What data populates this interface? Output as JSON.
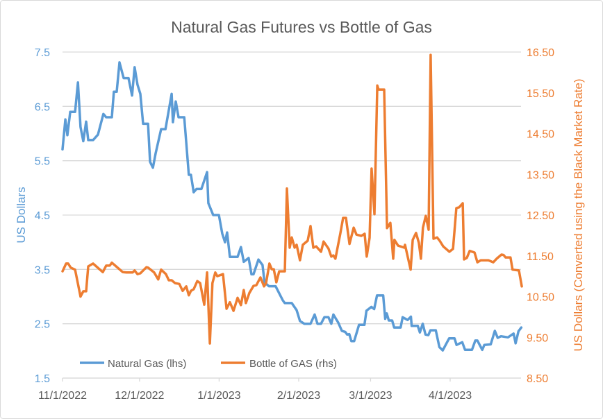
{
  "colors": {
    "natural_gas": "#5b9bd5",
    "bottle_gas": "#ed7d31",
    "grid": "#d9d9d9",
    "title": "#595959"
  },
  "chart_data": {
    "type": "line",
    "title": "Natural Gas Futures vs Bottle of Gas",
    "xlabel": "",
    "x_units": "days since 11/1/2022",
    "xlim": [
      0,
      178.6
    ],
    "x_ticks": [
      {
        "value": 0,
        "label": "11/1/2022"
      },
      {
        "value": 30,
        "label": "12/1/2022"
      },
      {
        "value": 61,
        "label": "1/1/2023"
      },
      {
        "value": 92,
        "label": "2/1/2023"
      },
      {
        "value": 120,
        "label": "3/1/2023"
      },
      {
        "value": 151,
        "label": "4/1/2023"
      }
    ],
    "y_left": {
      "label": "US Dollars",
      "lim": [
        1.5,
        7.5
      ],
      "ticks": [
        "1.5",
        "2.5",
        "3.5",
        "4.5",
        "5.5",
        "6.5",
        "7.5"
      ]
    },
    "y_right": {
      "label": "US Dollars (Converted using the Black Market Rate)",
      "lim": [
        8.5,
        16.5
      ],
      "ticks": [
        "8.50",
        "9.50",
        "10.50",
        "11.50",
        "12.50",
        "13.50",
        "14.50",
        "15.50",
        "16.50"
      ]
    },
    "grid": true,
    "legend_position": "bottom-left-inside",
    "series": [
      {
        "name": "Natural Gas (lhs)",
        "axis": "left",
        "points": [
          [
            0,
            5.71
          ],
          [
            1.1,
            6.26
          ],
          [
            1.9,
            5.97
          ],
          [
            3,
            6.4
          ],
          [
            4.9,
            6.4
          ],
          [
            6,
            6.94
          ],
          [
            7,
            6.12
          ],
          [
            8.1,
            5.86
          ],
          [
            9.2,
            6.22
          ],
          [
            10,
            5.88
          ],
          [
            11.9,
            5.88
          ],
          [
            13.8,
            5.98
          ],
          [
            15.9,
            6.36
          ],
          [
            17,
            6.3
          ],
          [
            19.2,
            6.3
          ],
          [
            20,
            6.77
          ],
          [
            21.1,
            6.77
          ],
          [
            22.2,
            7.31
          ],
          [
            23.8,
            7.02
          ],
          [
            25.7,
            7.02
          ],
          [
            27.1,
            6.7
          ],
          [
            28.1,
            7.22
          ],
          [
            29.2,
            6.9
          ],
          [
            30.3,
            6.73
          ],
          [
            31.4,
            6.18
          ],
          [
            33.3,
            6.18
          ],
          [
            34.1,
            5.48
          ],
          [
            35.2,
            5.37
          ],
          [
            36.3,
            5.64
          ],
          [
            38.4,
            6.08
          ],
          [
            40.1,
            6.08
          ],
          [
            42.5,
            6.73
          ],
          [
            43,
            6.21
          ],
          [
            44.1,
            6.59
          ],
          [
            45.2,
            6.3
          ],
          [
            47.4,
            6.3
          ],
          [
            49.2,
            5.24
          ],
          [
            50,
            5.24
          ],
          [
            51.1,
            4.92
          ],
          [
            52.2,
            4.98
          ],
          [
            54.1,
            4.98
          ],
          [
            56.3,
            5.29
          ],
          [
            56.8,
            4.72
          ],
          [
            58.7,
            4.5
          ],
          [
            60.9,
            4.5
          ],
          [
            62.2,
            4.16
          ],
          [
            63.3,
            4.0
          ],
          [
            64.1,
            4.18
          ],
          [
            65.2,
            3.73
          ],
          [
            68.2,
            3.73
          ],
          [
            69.5,
            3.91
          ],
          [
            70.6,
            3.64
          ],
          [
            72.5,
            3.71
          ],
          [
            73.6,
            3.41
          ],
          [
            74.4,
            3.41
          ],
          [
            76.3,
            3.68
          ],
          [
            77.9,
            3.58
          ],
          [
            78.7,
            3.26
          ],
          [
            80.4,
            3.19
          ],
          [
            83,
            3.19
          ],
          [
            85.8,
            2.93
          ],
          [
            86.6,
            2.88
          ],
          [
            89.3,
            2.88
          ],
          [
            91.2,
            2.75
          ],
          [
            92.5,
            2.55
          ],
          [
            94.2,
            2.5
          ],
          [
            96.6,
            2.5
          ],
          [
            98.2,
            2.67
          ],
          [
            99.3,
            2.5
          ],
          [
            100.7,
            2.5
          ],
          [
            102,
            2.62
          ],
          [
            103.6,
            2.62
          ],
          [
            104.7,
            2.5
          ],
          [
            105.5,
            2.67
          ],
          [
            107.4,
            2.52
          ],
          [
            108.8,
            2.37
          ],
          [
            110.1,
            2.35
          ],
          [
            110.9,
            2.3
          ],
          [
            111.7,
            2.31
          ],
          [
            112.5,
            2.18
          ],
          [
            113.6,
            2.18
          ],
          [
            115.5,
            2.48
          ],
          [
            117.6,
            2.48
          ],
          [
            118.4,
            2.74
          ],
          [
            120.3,
            2.81
          ],
          [
            121.4,
            2.77
          ],
          [
            122.5,
            3.02
          ],
          [
            124.9,
            3.02
          ],
          [
            125.7,
            2.59
          ],
          [
            126.3,
            2.69
          ],
          [
            127.1,
            2.56
          ],
          [
            128.4,
            2.56
          ],
          [
            129.2,
            2.43
          ],
          [
            131.7,
            2.43
          ],
          [
            132.5,
            2.62
          ],
          [
            134.4,
            2.57
          ],
          [
            135.7,
            2.63
          ],
          [
            136,
            2.46
          ],
          [
            138.4,
            2.46
          ],
          [
            139.2,
            2.34
          ],
          [
            140.3,
            2.5
          ],
          [
            141.4,
            2.3
          ],
          [
            142.5,
            2.29
          ],
          [
            143.3,
            2.38
          ],
          [
            145.4,
            2.38
          ],
          [
            146.8,
            2.07
          ],
          [
            148.1,
            2.01
          ],
          [
            150.6,
            2.23
          ],
          [
            152.7,
            2.23
          ],
          [
            153.5,
            2.11
          ],
          [
            155.7,
            2.16
          ],
          [
            156.8,
            2.02
          ],
          [
            159.5,
            2.02
          ],
          [
            160.8,
            2.19
          ],
          [
            161.6,
            2.19
          ],
          [
            163.5,
            2.02
          ],
          [
            164.3,
            2.11
          ],
          [
            166.8,
            2.12
          ],
          [
            168.4,
            2.37
          ],
          [
            169.5,
            2.24
          ],
          [
            170.8,
            2.27
          ],
          [
            173.5,
            2.25
          ],
          [
            175.7,
            2.32
          ],
          [
            176.5,
            2.14
          ],
          [
            177.6,
            2.36
          ],
          [
            178.7,
            2.43
          ]
        ]
      },
      {
        "name": "Bottle of GAS (rhs)",
        "axis": "right",
        "points": [
          [
            0,
            11.12
          ],
          [
            1.4,
            11.31
          ],
          [
            2.2,
            11.31
          ],
          [
            3.2,
            11.21
          ],
          [
            4.9,
            11.16
          ],
          [
            7,
            10.5
          ],
          [
            8.1,
            10.63
          ],
          [
            9.2,
            10.63
          ],
          [
            10,
            11.24
          ],
          [
            11.9,
            11.31
          ],
          [
            15.7,
            11.1
          ],
          [
            17,
            11.26
          ],
          [
            18.4,
            11.26
          ],
          [
            19.2,
            11.33
          ],
          [
            23.5,
            11.1
          ],
          [
            24.9,
            11.09
          ],
          [
            27.3,
            11.09
          ],
          [
            28.1,
            11.14
          ],
          [
            29.2,
            11.05
          ],
          [
            30.3,
            11.07
          ],
          [
            32.7,
            11.22
          ],
          [
            33.3,
            11.21
          ],
          [
            35.7,
            11.09
          ],
          [
            37.3,
            10.92
          ],
          [
            38.4,
            11.16
          ],
          [
            40.3,
            11.05
          ],
          [
            41.4,
            10.9
          ],
          [
            42.5,
            10.9
          ],
          [
            43.8,
            10.83
          ],
          [
            45.5,
            10.81
          ],
          [
            46.8,
            10.64
          ],
          [
            48.2,
            10.75
          ],
          [
            49.2,
            10.53
          ],
          [
            50,
            10.64
          ],
          [
            51.1,
            10.68
          ],
          [
            52.5,
            10.88
          ],
          [
            53.6,
            10.83
          ],
          [
            55.2,
            10.3
          ],
          [
            56.3,
            11.09
          ],
          [
            57.4,
            9.35
          ],
          [
            58.4,
            10.83
          ],
          [
            59.5,
            11.09
          ],
          [
            60.3,
            11.0
          ],
          [
            62.5,
            11.05
          ],
          [
            63.9,
            10.2
          ],
          [
            65.2,
            10.36
          ],
          [
            66.6,
            10.15
          ],
          [
            68.2,
            10.47
          ],
          [
            69.5,
            10.29
          ],
          [
            70.6,
            10.66
          ],
          [
            71.4,
            10.34
          ],
          [
            72.8,
            10.59
          ],
          [
            74.4,
            10.76
          ],
          [
            75.5,
            10.78
          ],
          [
            77.1,
            10.97
          ],
          [
            78.5,
            10.75
          ],
          [
            79.3,
            10.83
          ],
          [
            80.6,
            11.31
          ],
          [
            81.5,
            11.17
          ],
          [
            82.3,
            11.17
          ],
          [
            83.3,
            10.85
          ],
          [
            84.4,
            11.12
          ],
          [
            86.6,
            11.12
          ],
          [
            87.4,
            13.15
          ],
          [
            88.5,
            11.7
          ],
          [
            89.3,
            11.95
          ],
          [
            90.4,
            11.7
          ],
          [
            91.2,
            11.77
          ],
          [
            92.5,
            11.39
          ],
          [
            93.6,
            11.77
          ],
          [
            95.5,
            11.87
          ],
          [
            96.6,
            12.23
          ],
          [
            97.7,
            11.7
          ],
          [
            98.8,
            11.73
          ],
          [
            100.7,
            11.6
          ],
          [
            101.7,
            11.85
          ],
          [
            103.6,
            11.68
          ],
          [
            104.7,
            11.48
          ],
          [
            105.5,
            11.51
          ],
          [
            106.3,
            11.43
          ],
          [
            108.2,
            12.04
          ],
          [
            109.3,
            12.43
          ],
          [
            110.4,
            12.43
          ],
          [
            111.8,
            11.79
          ],
          [
            113.4,
            12.19
          ],
          [
            114.5,
            12.02
          ],
          [
            116.4,
            11.99
          ],
          [
            117.7,
            12.04
          ],
          [
            118.5,
            11.48
          ],
          [
            119.6,
            11.94
          ],
          [
            120.4,
            13.64
          ],
          [
            121.5,
            12.52
          ],
          [
            122.6,
            15.68
          ],
          [
            123.1,
            15.58
          ],
          [
            125.3,
            15.58
          ],
          [
            126.4,
            12.18
          ],
          [
            127.7,
            12.31
          ],
          [
            128.8,
            11.43
          ],
          [
            129.3,
            11.89
          ],
          [
            130.7,
            11.75
          ],
          [
            133.1,
            11.7
          ],
          [
            133.4,
            11.77
          ],
          [
            135.6,
            11.16
          ],
          [
            136.4,
            11.89
          ],
          [
            137.7,
            12.06
          ],
          [
            138.8,
            11.82
          ],
          [
            139.6,
            11.43
          ],
          [
            140.4,
            12.19
          ],
          [
            141.5,
            12.48
          ],
          [
            142.6,
            12.14
          ],
          [
            143.4,
            16.43
          ],
          [
            144.5,
            11.92
          ],
          [
            145.9,
            11.95
          ],
          [
            146.9,
            11.87
          ],
          [
            148.3,
            11.73
          ],
          [
            150.7,
            11.6
          ],
          [
            152.1,
            11.67
          ],
          [
            153.4,
            12.67
          ],
          [
            154.5,
            12.69
          ],
          [
            155.9,
            12.79
          ],
          [
            156.4,
            11.41
          ],
          [
            157.5,
            11.45
          ],
          [
            158.6,
            11.62
          ],
          [
            160.5,
            11.58
          ],
          [
            161.6,
            11.34
          ],
          [
            162.9,
            11.39
          ],
          [
            165.9,
            11.39
          ],
          [
            167.8,
            11.34
          ],
          [
            169.1,
            11.43
          ],
          [
            171,
            11.53
          ],
          [
            171.8,
            11.52
          ],
          [
            172.6,
            11.46
          ],
          [
            174.5,
            11.46
          ],
          [
            175.3,
            11.16
          ],
          [
            177.8,
            11.14
          ],
          [
            178.9,
            10.75
          ]
        ]
      }
    ]
  }
}
